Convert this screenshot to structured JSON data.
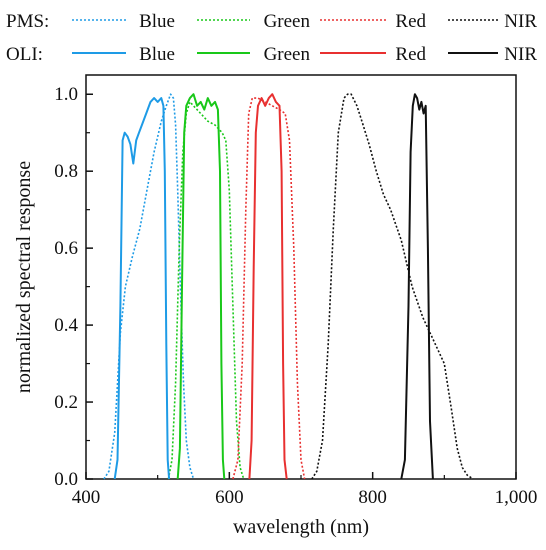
{
  "chart_data": {
    "type": "line",
    "title": "",
    "xlabel": "wavelength (nm)",
    "ylabel": "normalized spectral response",
    "xlim": [
      400,
      1000
    ],
    "ylim": [
      0,
      1.05
    ],
    "x_ticks": [
      400,
      600,
      800,
      1000
    ],
    "x_tick_labels": [
      "400",
      "600",
      "800",
      "1,000"
    ],
    "y_ticks": [
      0,
      0.2,
      0.4,
      0.6,
      0.8,
      1.0
    ],
    "y_tick_labels": [
      "0.0",
      "0.2",
      "0.4",
      "0.6",
      "0.8",
      "1.0"
    ],
    "grid": false,
    "legend": {
      "placement": "top",
      "groups": [
        {
          "name": "PMS:",
          "style": "dotted"
        },
        {
          "name": "OLI:",
          "style": "solid"
        }
      ],
      "bands": [
        "Blue",
        "Green",
        "Red",
        "NIR"
      ]
    },
    "series": [
      {
        "group": "PMS",
        "name": "Blue",
        "color": "#1E9BE6",
        "style": "dotted",
        "x": [
          425,
          432,
          440,
          448,
          455,
          465,
          475,
          485,
          495,
          505,
          512,
          518,
          522,
          525,
          528,
          532,
          536,
          540,
          545,
          550
        ],
        "y": [
          0,
          0.02,
          0.12,
          0.38,
          0.5,
          0.58,
          0.65,
          0.75,
          0.85,
          0.93,
          0.97,
          1.0,
          0.99,
          0.92,
          0.75,
          0.48,
          0.25,
          0.1,
          0.03,
          0
        ]
      },
      {
        "group": "PMS",
        "name": "Green",
        "color": "#19C819",
        "style": "dotted",
        "x": [
          515,
          520,
          525,
          530,
          535,
          540,
          545,
          550,
          560,
          570,
          580,
          585,
          590,
          595,
          600,
          605,
          610,
          615,
          620
        ],
        "y": [
          0,
          0.05,
          0.25,
          0.6,
          0.85,
          0.95,
          0.98,
          0.97,
          0.95,
          0.93,
          0.92,
          0.91,
          0.9,
          0.88,
          0.75,
          0.45,
          0.15,
          0.03,
          0
        ]
      },
      {
        "group": "PMS",
        "name": "Red",
        "color": "#E83030",
        "style": "dotted",
        "x": [
          605,
          612,
          618,
          623,
          627,
          632,
          640,
          650,
          660,
          670,
          678,
          684,
          690,
          695,
          700,
          705
        ],
        "y": [
          0,
          0.05,
          0.3,
          0.7,
          0.95,
          0.99,
          0.99,
          0.98,
          0.97,
          0.96,
          0.95,
          0.88,
          0.6,
          0.25,
          0.05,
          0
        ]
      },
      {
        "group": "PMS",
        "name": "NIR",
        "color": "#111111",
        "style": "dotted",
        "x": [
          715,
          722,
          730,
          738,
          745,
          752,
          760,
          765,
          770,
          778,
          785,
          795,
          805,
          815,
          825,
          840,
          855,
          870,
          885,
          900,
          910,
          918,
          925,
          932,
          940
        ],
        "y": [
          0,
          0.02,
          0.1,
          0.35,
          0.65,
          0.9,
          0.99,
          1.0,
          1.0,
          0.97,
          0.93,
          0.87,
          0.8,
          0.74,
          0.7,
          0.62,
          0.5,
          0.42,
          0.36,
          0.3,
          0.18,
          0.08,
          0.03,
          0.01,
          0
        ]
      },
      {
        "group": "OLI",
        "name": "Blue",
        "color": "#1E9BE6",
        "style": "solid",
        "x": [
          440,
          444,
          448,
          451,
          454,
          458,
          462,
          466,
          470,
          474,
          478,
          484,
          490,
          495,
          500,
          505,
          508,
          510,
          512,
          514,
          516
        ],
        "y": [
          0,
          0.05,
          0.45,
          0.88,
          0.9,
          0.89,
          0.87,
          0.82,
          0.88,
          0.9,
          0.92,
          0.95,
          0.98,
          0.99,
          0.98,
          0.99,
          0.97,
          0.8,
          0.35,
          0.05,
          0
        ]
      },
      {
        "group": "OLI",
        "name": "Green",
        "color": "#19C819",
        "style": "solid",
        "x": [
          528,
          531,
          534,
          537,
          540,
          545,
          550,
          555,
          560,
          565,
          570,
          575,
          580,
          584,
          587,
          589,
          591,
          593
        ],
        "y": [
          0,
          0.08,
          0.5,
          0.9,
          0.97,
          0.99,
          1.0,
          0.97,
          0.98,
          0.96,
          0.99,
          0.97,
          0.98,
          0.96,
          0.8,
          0.3,
          0.05,
          0
        ]
      },
      {
        "group": "OLI",
        "name": "Red",
        "color": "#E83030",
        "style": "solid",
        "x": [
          628,
          631,
          634,
          637,
          640,
          645,
          650,
          655,
          660,
          665,
          670,
          673,
          675,
          677,
          680
        ],
        "y": [
          0,
          0.1,
          0.55,
          0.9,
          0.97,
          0.99,
          0.97,
          0.99,
          1.0,
          0.98,
          0.97,
          0.8,
          0.3,
          0.05,
          0
        ]
      },
      {
        "group": "OLI",
        "name": "NIR",
        "color": "#111111",
        "style": "solid",
        "x": [
          840,
          845,
          850,
          853,
          856,
          859,
          862,
          865,
          868,
          871,
          874,
          877,
          880,
          884
        ],
        "y": [
          0,
          0.05,
          0.45,
          0.85,
          0.97,
          1.0,
          0.99,
          0.96,
          0.98,
          0.95,
          0.97,
          0.6,
          0.15,
          0
        ]
      }
    ]
  }
}
